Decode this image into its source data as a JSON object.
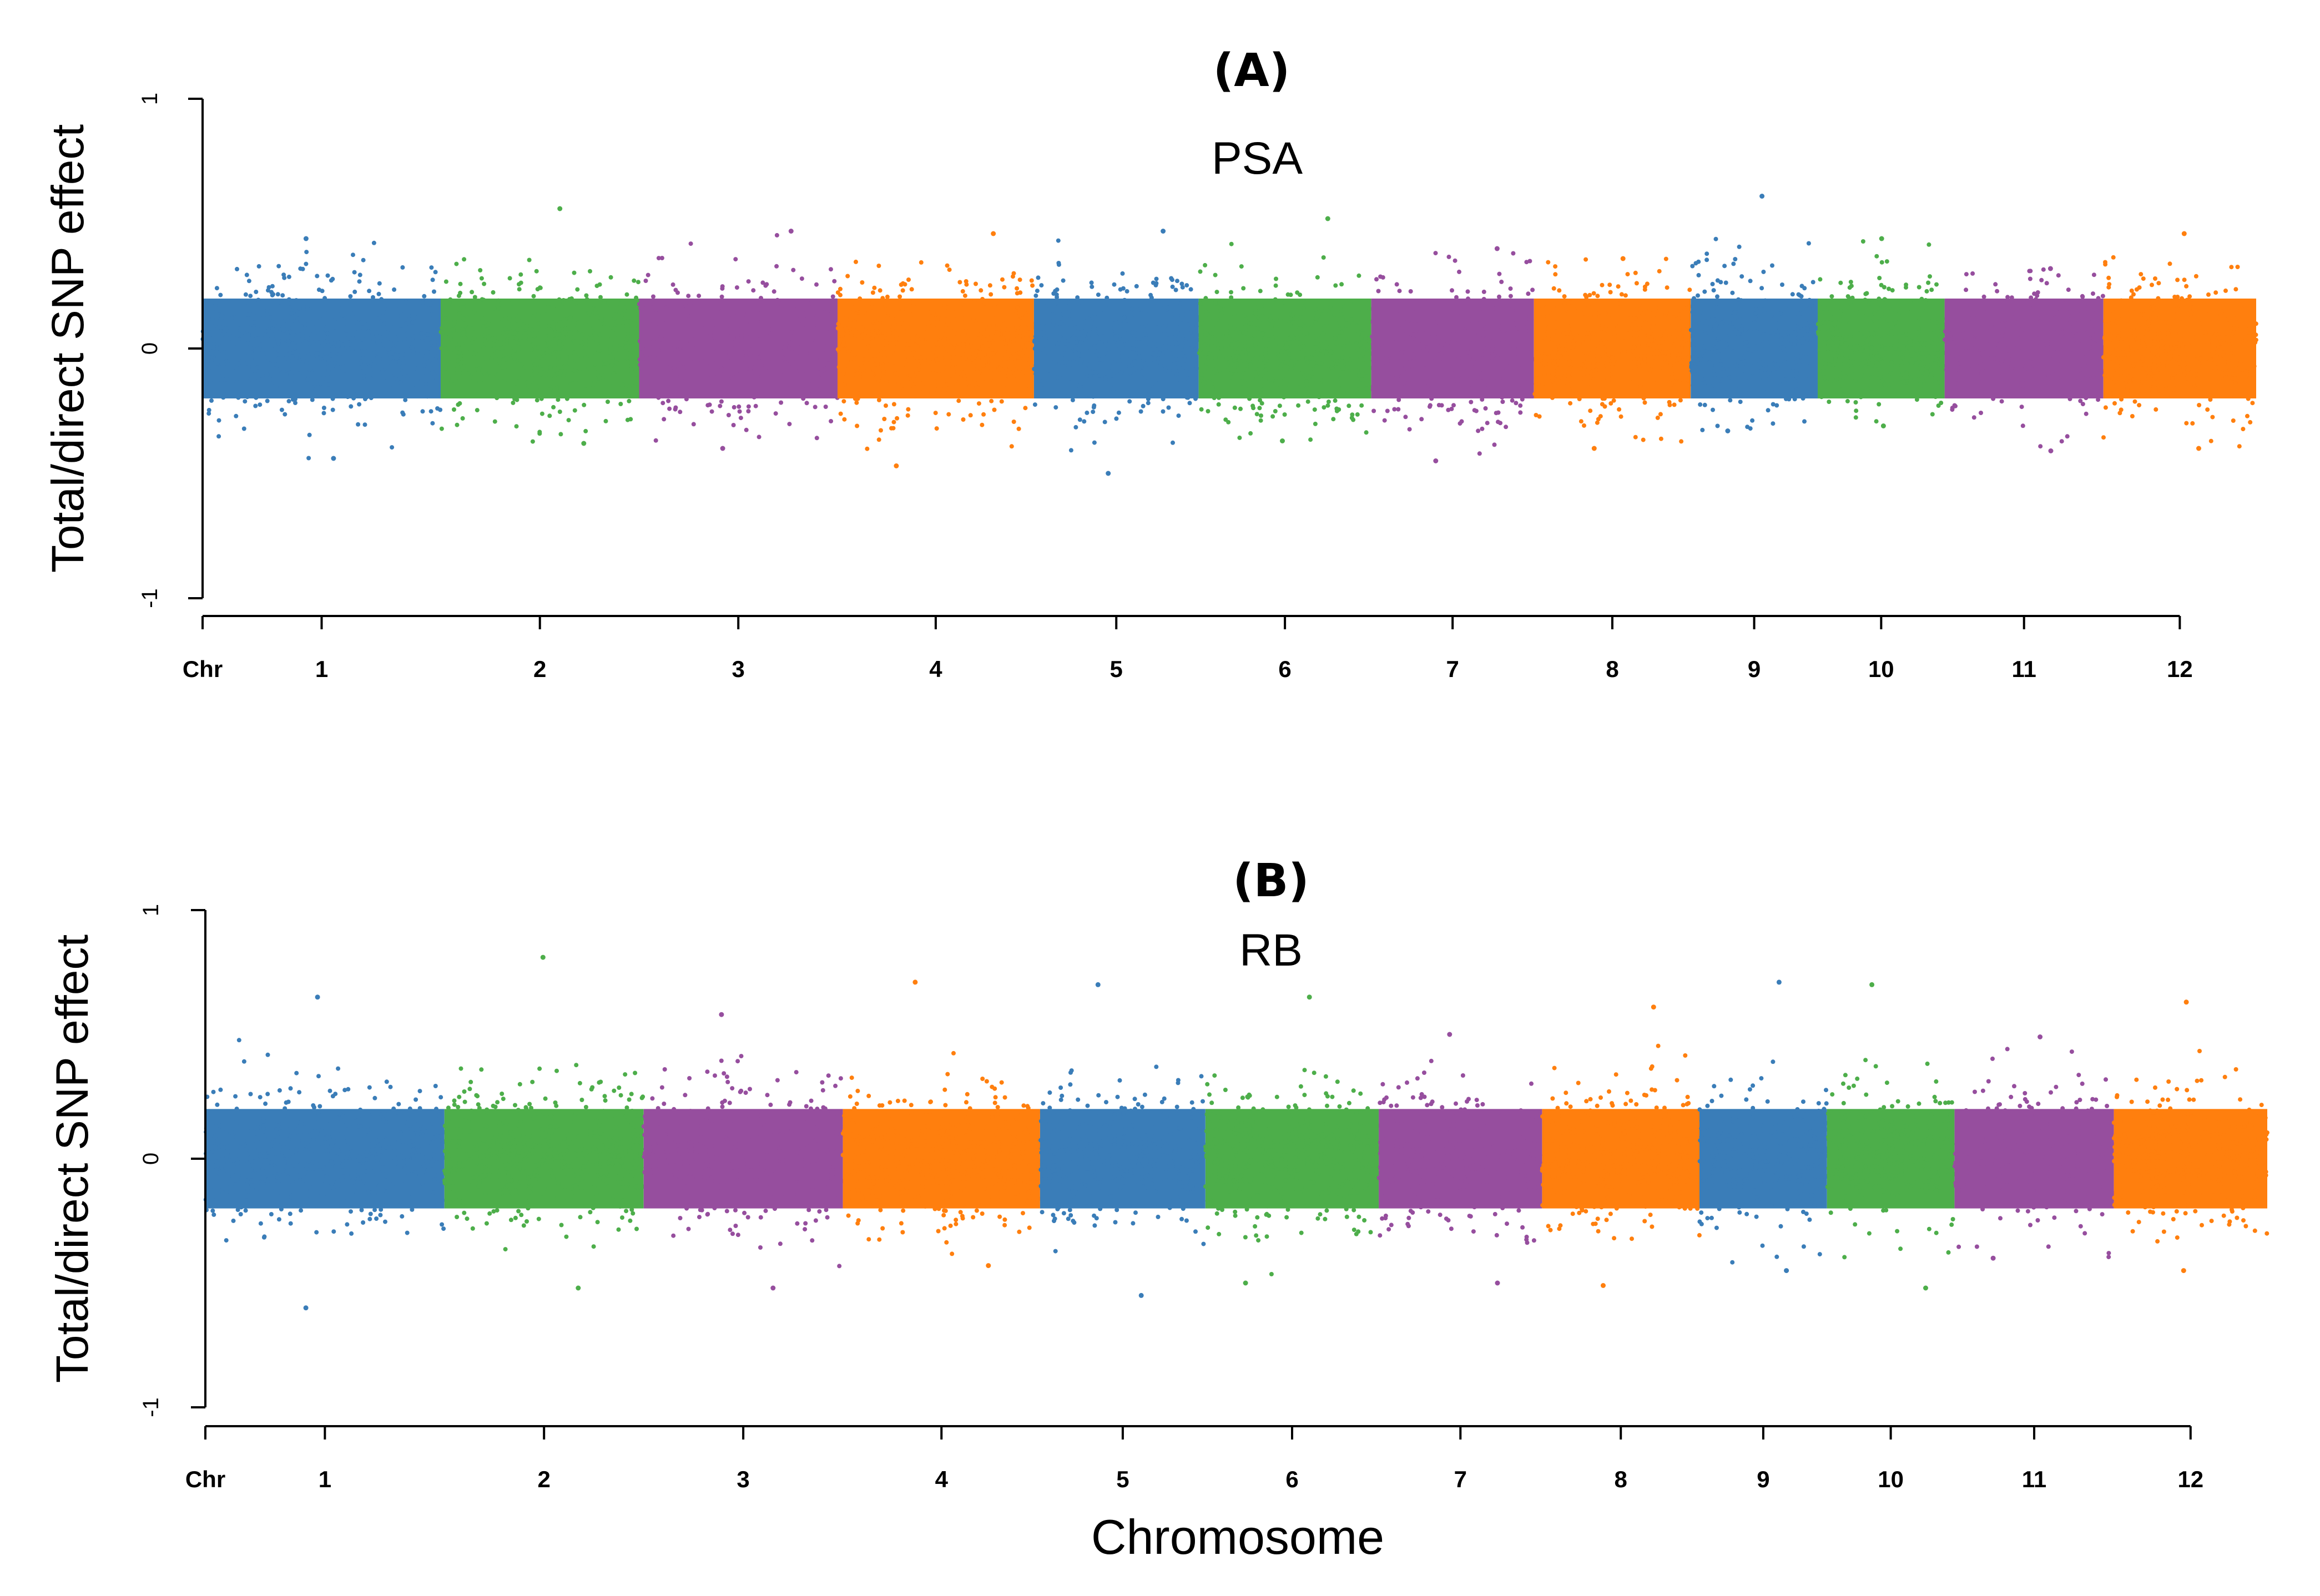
{
  "figure": {
    "xlabel": "Chromosome"
  },
  "colors": {
    "blue": "#3A7DB8",
    "green": "#4DAE4A",
    "purple": "#964E9E",
    "orange": "#FF7F0E",
    "axis": "#000000"
  },
  "chart_data": [
    {
      "type": "scatter",
      "panel": "(A)",
      "title": "PSA",
      "ylabel": "Total/direct SNP effect",
      "ylim": [
        -1,
        1
      ],
      "yticks": [
        "-1",
        "0",
        "1"
      ],
      "xlabel": "",
      "xtick_start_label": "Chr",
      "chromosomes": [
        {
          "label": "1",
          "start": 0.0,
          "end": 1.2,
          "color": "blue",
          "max": 0.44,
          "min": -0.44
        },
        {
          "label": "2",
          "start": 1.2,
          "end": 2.2,
          "color": "green",
          "max": 0.56,
          "min": -0.38
        },
        {
          "label": "3",
          "start": 2.2,
          "end": 3.2,
          "color": "purple",
          "max": 0.47,
          "min": -0.4
        },
        {
          "label": "4",
          "start": 3.2,
          "end": 4.19,
          "color": "orange",
          "max": 0.46,
          "min": -0.47
        },
        {
          "label": "5",
          "start": 4.19,
          "end": 5.02,
          "color": "blue",
          "max": 0.47,
          "min": -0.5
        },
        {
          "label": "6",
          "start": 5.02,
          "end": 5.89,
          "color": "green",
          "max": 0.52,
          "min": -0.37
        },
        {
          "label": "7",
          "start": 5.89,
          "end": 6.71,
          "color": "purple",
          "max": 0.4,
          "min": -0.45
        },
        {
          "label": "8",
          "start": 6.71,
          "end": 7.5,
          "color": "orange",
          "max": 0.36,
          "min": -0.4
        },
        {
          "label": "9",
          "start": 7.5,
          "end": 8.14,
          "color": "blue",
          "max": 0.61,
          "min": -0.33
        },
        {
          "label": "10",
          "start": 8.14,
          "end": 8.78,
          "color": "green",
          "max": 0.44,
          "min": -0.31
        },
        {
          "label": "11",
          "start": 8.78,
          "end": 9.58,
          "color": "purple",
          "max": 0.32,
          "min": -0.41
        },
        {
          "label": "12",
          "start": 9.58,
          "end": 10.35,
          "color": "orange",
          "max": 0.46,
          "min": -0.4
        }
      ]
    },
    {
      "type": "scatter",
      "panel": "(B)",
      "title": "RB",
      "ylabel": "Total/direct SNP effect",
      "ylim": [
        -1,
        1
      ],
      "yticks": [
        "-1",
        "0",
        "1"
      ],
      "xlabel": "Chromosome",
      "xtick_start_label": "Chr",
      "chromosomes": [
        {
          "label": "1",
          "start": 0.0,
          "end": 1.2,
          "color": "blue",
          "max": 0.65,
          "min": -0.6
        },
        {
          "label": "2",
          "start": 1.2,
          "end": 2.2,
          "color": "green",
          "max": 0.81,
          "min": -0.52
        },
        {
          "label": "3",
          "start": 2.2,
          "end": 3.2,
          "color": "purple",
          "max": 0.58,
          "min": -0.52
        },
        {
          "label": "4",
          "start": 3.2,
          "end": 4.19,
          "color": "orange",
          "max": 0.71,
          "min": -0.43
        },
        {
          "label": "5",
          "start": 4.19,
          "end": 5.02,
          "color": "blue",
          "max": 0.7,
          "min": -0.55
        },
        {
          "label": "6",
          "start": 5.02,
          "end": 5.89,
          "color": "green",
          "max": 0.65,
          "min": -0.5
        },
        {
          "label": "7",
          "start": 5.89,
          "end": 6.71,
          "color": "purple",
          "max": 0.5,
          "min": -0.5
        },
        {
          "label": "8",
          "start": 6.71,
          "end": 7.5,
          "color": "orange",
          "max": 0.61,
          "min": -0.51
        },
        {
          "label": "9",
          "start": 7.5,
          "end": 8.14,
          "color": "blue",
          "max": 0.71,
          "min": -0.45
        },
        {
          "label": "10",
          "start": 8.14,
          "end": 8.78,
          "color": "green",
          "max": 0.7,
          "min": -0.52
        },
        {
          "label": "11",
          "start": 8.78,
          "end": 9.58,
          "color": "purple",
          "max": 0.49,
          "min": -0.4
        },
        {
          "label": "12",
          "start": 9.58,
          "end": 10.35,
          "color": "orange",
          "max": 0.63,
          "min": -0.45
        }
      ]
    }
  ]
}
